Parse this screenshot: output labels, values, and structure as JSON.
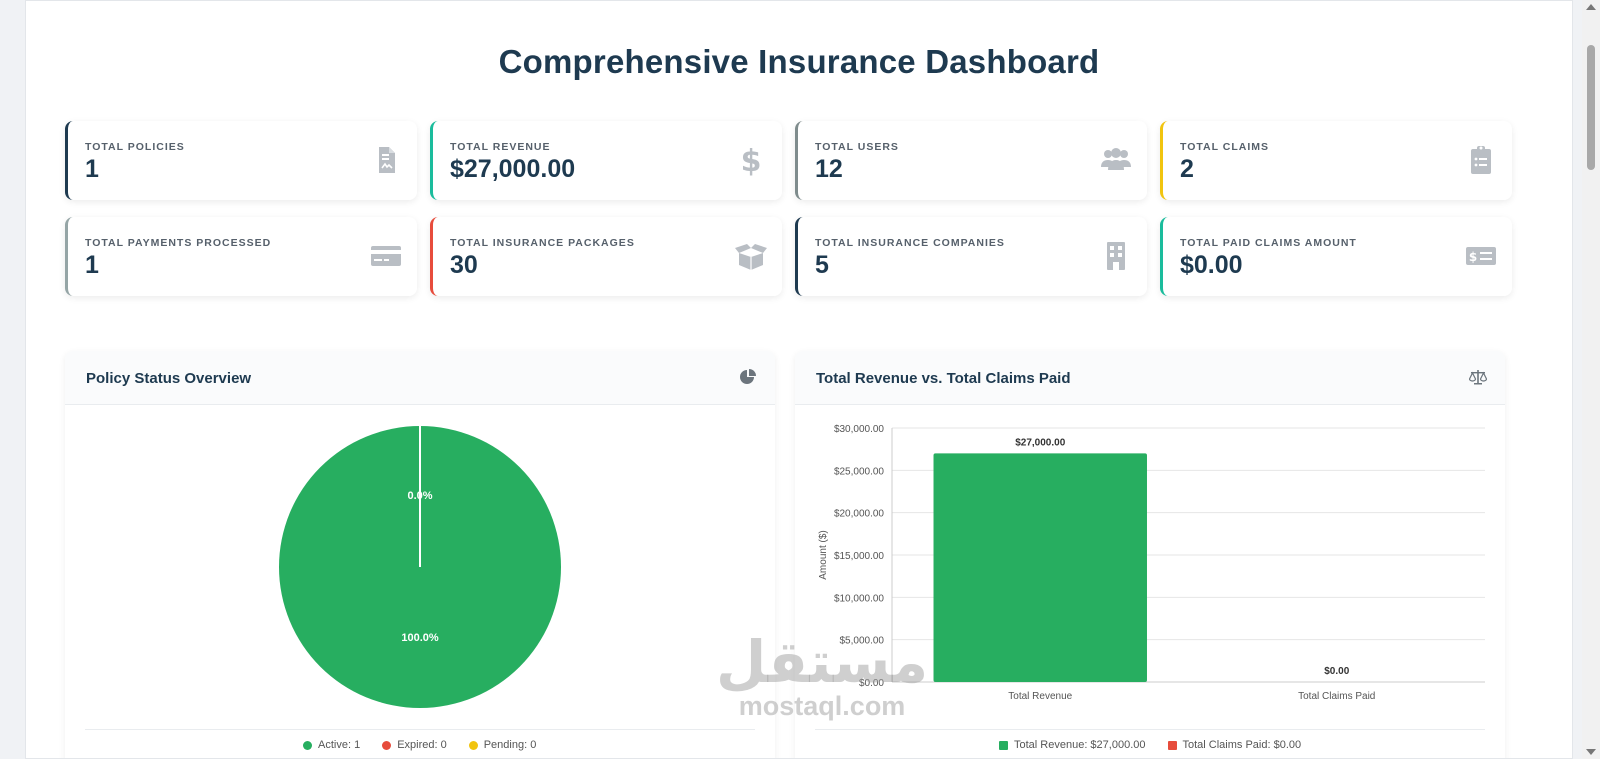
{
  "page": {
    "title": "Comprehensive Insurance Dashboard"
  },
  "stats": [
    {
      "label": "TOTAL POLICIES",
      "value": "1",
      "icon": "file-contract-icon",
      "accent": "#1e3a50"
    },
    {
      "label": "TOTAL REVENUE",
      "value": "$27,000.00",
      "icon": "dollar-icon",
      "accent": "#1abc9c"
    },
    {
      "label": "TOTAL USERS",
      "value": "12",
      "icon": "users-icon",
      "accent": "#7f8c8d"
    },
    {
      "label": "TOTAL CLAIMS",
      "value": "2",
      "icon": "clipboard-list-icon",
      "accent": "#f1c40f"
    },
    {
      "label": "TOTAL PAYMENTS PROCESSED",
      "value": "1",
      "icon": "credit-card-icon",
      "accent": "#95a5a6"
    },
    {
      "label": "TOTAL INSURANCE PACKAGES",
      "value": "30",
      "icon": "box-open-icon",
      "accent": "#e74c3c"
    },
    {
      "label": "TOTAL INSURANCE COMPANIES",
      "value": "5",
      "icon": "building-icon",
      "accent": "#1e3a50"
    },
    {
      "label": "TOTAL PAID CLAIMS AMOUNT",
      "value": "$0.00",
      "icon": "money-check-icon",
      "accent": "#1abc9c"
    }
  ],
  "policy_panel": {
    "title": "Policy Status Overview",
    "icon": "pie-chart-icon",
    "legend": [
      {
        "label": "Active: 1",
        "color": "#27ae60"
      },
      {
        "label": "Expired: 0",
        "color": "#e74c3c"
      },
      {
        "label": "Pending: 0",
        "color": "#f1c40f"
      }
    ]
  },
  "revenue_panel": {
    "title": "Total Revenue vs. Total Claims Paid",
    "icon": "balance-scale-icon",
    "legend": [
      {
        "label": "Total Revenue: $27,000.00",
        "color": "#27ae60"
      },
      {
        "label": "Total Claims Paid: $0.00",
        "color": "#e74c3c"
      }
    ]
  },
  "watermark": {
    "arabic": "مستقل",
    "latin": "mostaql.com"
  },
  "chart_data": [
    {
      "type": "pie",
      "title": "Policy Status Overview",
      "categories": [
        "Active",
        "Expired",
        "Pending"
      ],
      "values": [
        1,
        0,
        0
      ],
      "colors": [
        "#27ae60",
        "#e74c3c",
        "#f1c40f"
      ],
      "slice_labels": [
        "100.0%",
        "0.0%",
        ""
      ]
    },
    {
      "type": "bar",
      "title": "Total Revenue vs. Total Claims Paid",
      "categories": [
        "Total Revenue",
        "Total Claims Paid"
      ],
      "values": [
        27000,
        0
      ],
      "colors": [
        "#27ae60",
        "#e74c3c"
      ],
      "data_labels": [
        "$27,000.00",
        "$0.00"
      ],
      "ylabel": "Amount ($)",
      "ylim": [
        0,
        30000
      ],
      "yticks": [
        0,
        5000,
        10000,
        15000,
        20000,
        25000,
        30000
      ],
      "ytick_labels": [
        "$0.00",
        "$5,000.00",
        "$10,000.00",
        "$15,000.00",
        "$20,000.00",
        "$25,000.00",
        "$30,000.00"
      ]
    }
  ]
}
